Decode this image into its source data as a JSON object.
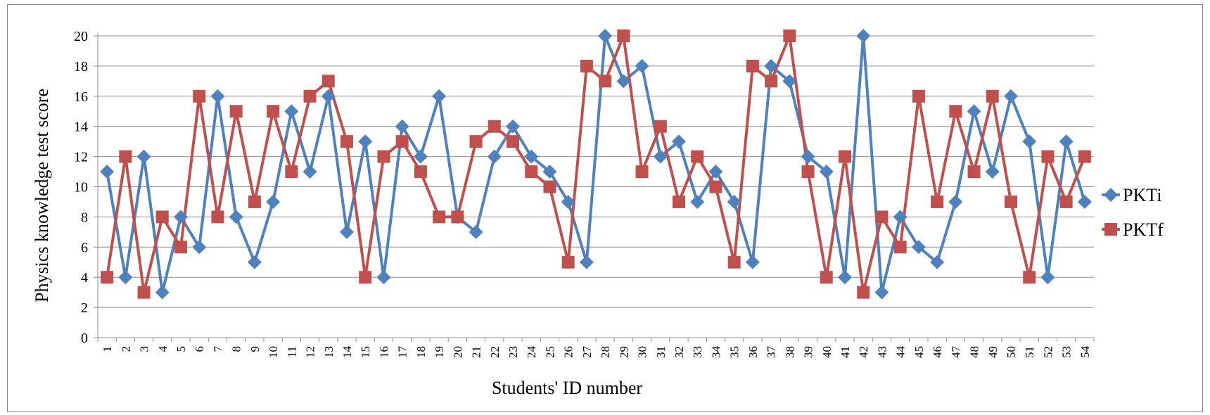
{
  "chart_data": {
    "type": "line",
    "title": "",
    "xlabel": "Students' ID number",
    "ylabel": "Physics knowledge test score",
    "ylim": [
      0,
      20
    ],
    "ytick_step": 2,
    "grid": "horizontal",
    "legend_position": "right",
    "categories": [
      "1",
      "2",
      "3",
      "4",
      "5",
      "6",
      "7",
      "8",
      "9",
      "10",
      "11",
      "12",
      "13",
      "14",
      "15",
      "16",
      "17",
      "18",
      "19",
      "20",
      "21",
      "22",
      "23",
      "24",
      "25",
      "26",
      "27",
      "28",
      "29",
      "30",
      "31",
      "32",
      "33",
      "34",
      "35",
      "36",
      "37",
      "38",
      "39",
      "40",
      "41",
      "42",
      "43",
      "44",
      "45",
      "46",
      "47",
      "48",
      "49",
      "50",
      "51",
      "52",
      "53",
      "54"
    ],
    "series": [
      {
        "name": "PKTi",
        "color": "#4f81bd",
        "marker": "diamond",
        "values": [
          11,
          4,
          12,
          3,
          8,
          6,
          16,
          8,
          5,
          9,
          15,
          11,
          16,
          7,
          13,
          4,
          14,
          12,
          16,
          8,
          7,
          12,
          14,
          12,
          11,
          9,
          5,
          20,
          17,
          18,
          12,
          13,
          9,
          11,
          9,
          5,
          18,
          17,
          12,
          11,
          4,
          20,
          3,
          8,
          6,
          5,
          9,
          15,
          11,
          16,
          13,
          4,
          13,
          9
        ]
      },
      {
        "name": "PKTf",
        "color": "#c0504d",
        "marker": "square",
        "values": [
          4,
          12,
          3,
          8,
          6,
          16,
          8,
          15,
          9,
          15,
          11,
          16,
          17,
          13,
          4,
          12,
          13,
          11,
          8,
          8,
          13,
          14,
          13,
          11,
          10,
          5,
          18,
          17,
          20,
          11,
          14,
          9,
          12,
          10,
          5,
          18,
          17,
          20,
          11,
          4,
          12,
          3,
          8,
          6,
          16,
          9,
          15,
          11,
          16,
          9,
          4,
          12,
          9,
          12
        ]
      }
    ]
  }
}
